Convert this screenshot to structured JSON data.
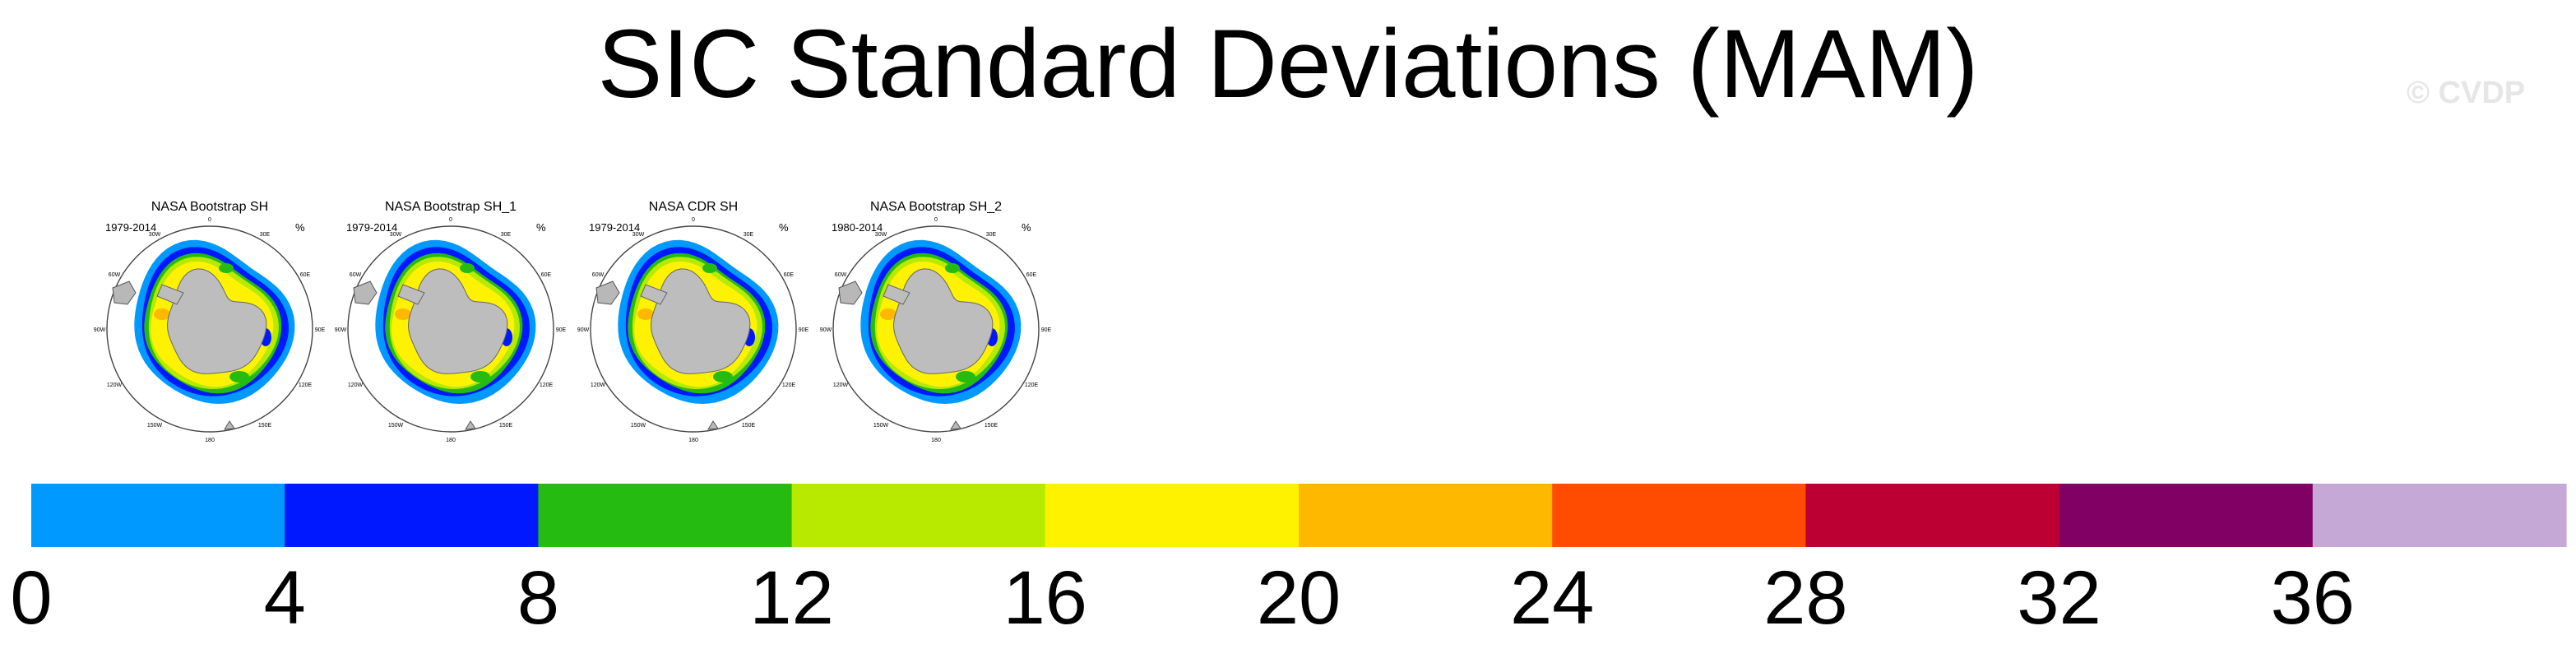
{
  "title": "SIC Standard Deviations (MAM)",
  "watermark": "© CVDP",
  "panels": [
    {
      "title": "NASA Bootstrap SH",
      "years": "1979-2014",
      "units": "%"
    },
    {
      "title": "NASA Bootstrap SH_1",
      "years": "1979-2014",
      "units": "%"
    },
    {
      "title": "NASA CDR SH",
      "years": "1979-2014",
      "units": "%"
    },
    {
      "title": "NASA Bootstrap SH_2",
      "years": "1980-2014",
      "units": "%"
    }
  ],
  "map_labels": [
    "0",
    "30E",
    "60E",
    "90E",
    "120E",
    "150E",
    "180",
    "150W",
    "120W",
    "90W",
    "60W",
    "30W"
  ],
  "chart_data": {
    "type": "heatmap",
    "title": "SIC Standard Deviations (MAM)",
    "projection": "south polar stereographic",
    "colorbar": {
      "tick_labels": [
        "0",
        "4",
        "8",
        "12",
        "16",
        "20",
        "24",
        "28",
        "32",
        "36"
      ],
      "bins": [
        {
          "range": [
            0,
            4
          ],
          "color": "#0099ff"
        },
        {
          "range": [
            4,
            8
          ],
          "color": "#0018ff"
        },
        {
          "range": [
            8,
            12
          ],
          "color": "#26bb11"
        },
        {
          "range": [
            12,
            16
          ],
          "color": "#b8ea00"
        },
        {
          "range": [
            16,
            20
          ],
          "color": "#fff200"
        },
        {
          "range": [
            20,
            24
          ],
          "color": "#ffb800"
        },
        {
          "range": [
            24,
            28
          ],
          "color": "#ff4c00"
        },
        {
          "range": [
            28,
            32
          ],
          "color": "#bd0033"
        },
        {
          "range": [
            32,
            36
          ],
          "color": "#800064"
        },
        {
          "range": [
            36,
            null
          ],
          "color": "#c6a8d6"
        }
      ]
    }
  }
}
